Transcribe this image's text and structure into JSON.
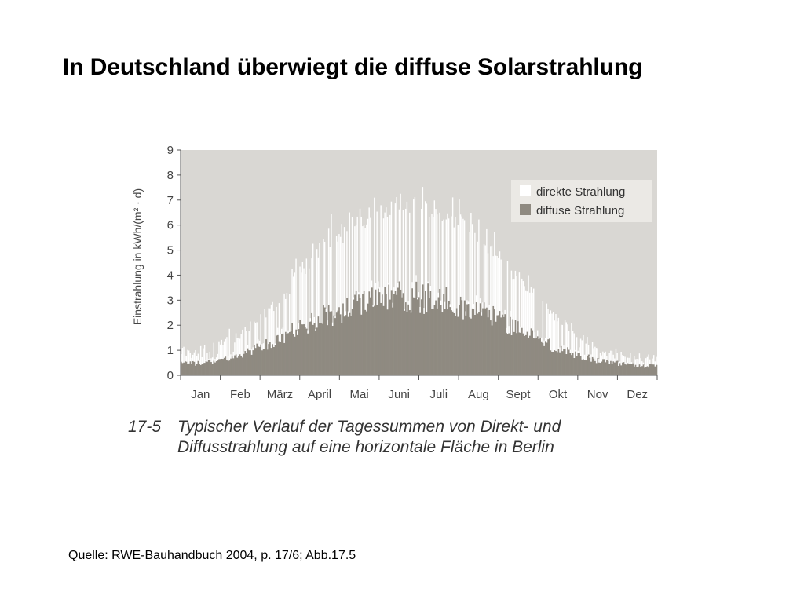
{
  "title": "In Deutschland überwiegt die diffuse Solarstrahlung",
  "source": "Quelle: RWE-Bauhandbuch 2004, p. 17/6;  Abb.17.5",
  "caption": {
    "number": "17-5",
    "line1": "Typischer Verlauf der Tagessummen von Direkt- und",
    "line2": "Diffusstrahlung auf eine horizontale Fläche in Berlin"
  },
  "colors": {
    "plot_background": "#d9d7d3",
    "direct": "#ffffff",
    "diffuse": "#8f8a81",
    "axis": "#555555"
  },
  "chart_data": {
    "type": "bar",
    "stacked": true,
    "ylabel": "Einstrahlung in kWh/(m² · d)",
    "ylim": [
      0,
      9
    ],
    "yticks": [
      "0",
      "1",
      "2",
      "3",
      "4",
      "5",
      "6",
      "7",
      "8",
      "9"
    ],
    "grid": false,
    "legend_position": "top-right",
    "x_categories": [
      "Jan",
      "Feb",
      "März",
      "April",
      "Mai",
      "Juni",
      "Juli",
      "Aug",
      "Sept",
      "Okt",
      "Nov",
      "Dez"
    ],
    "series": [
      {
        "name": "direkte Strahlung",
        "color": "#ffffff"
      },
      {
        "name": "diffuse Strahlung",
        "color": "#8f8a81"
      }
    ],
    "monthly_typical": {
      "diffuse": [
        0.5,
        0.8,
        1.6,
        2.4,
        3.0,
        3.3,
        3.2,
        2.7,
        1.9,
        1.1,
        0.6,
        0.4
      ],
      "total": [
        0.7,
        1.4,
        2.8,
        4.6,
        5.8,
        6.4,
        6.2,
        5.2,
        3.6,
        2.0,
        0.9,
        0.6
      ],
      "max_total": [
        1.5,
        2.0,
        3.6,
        6.5,
        7.0,
        7.9,
        7.5,
        6.6,
        4.5,
        2.6,
        1.2,
        1.1
      ]
    }
  }
}
